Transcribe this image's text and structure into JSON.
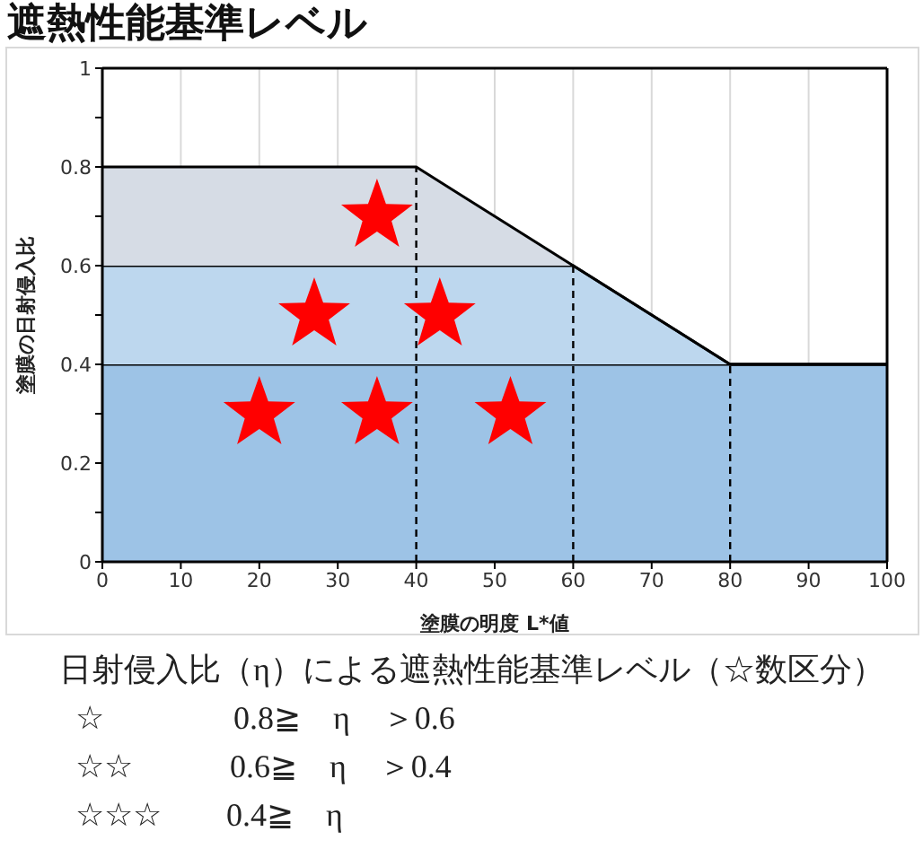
{
  "chart_data": {
    "type": "area",
    "title": "遮熱性能基準レベル",
    "xlabel": "塗膜の明度 L*値",
    "ylabel": "塗膜の日射侵入比",
    "x": [
      0,
      40,
      60,
      80,
      100
    ],
    "stacked": true,
    "series": [
      {
        "color": "#9dc3e6",
        "values": [
          0.4,
          0.4,
          0.4,
          0.4,
          0.4
        ]
      },
      {
        "color": "#bdd7ee",
        "values": [
          0.2,
          0.2,
          0.2,
          0,
          0
        ]
      },
      {
        "color": "#d6dce5",
        "values": [
          0.2,
          0.2,
          0,
          0,
          0
        ]
      },
      {
        "type": "scatter",
        "color": "#ff0000",
        "marker": "star",
        "x": [
          35,
          27,
          43,
          20,
          35,
          52
        ],
        "values": [
          0.7,
          0.5,
          0.5,
          0.3,
          0.3,
          0.3
        ]
      }
    ],
    "xlim": [
      0,
      100
    ],
    "xticks": [
      0,
      10,
      20,
      30,
      40,
      50,
      60,
      70,
      80,
      90,
      100
    ],
    "ylim": [
      0,
      1
    ],
    "yticks": [
      0,
      {
        "value": 0.1,
        "label": null
      },
      0.2,
      {
        "value": 0.3,
        "label": null
      },
      0.4,
      {
        "value": 0.5,
        "label": null
      },
      0.6,
      {
        "value": 0.7,
        "label": null
      },
      0.8,
      {
        "value": 0.9,
        "label": null
      },
      1
    ],
    "grid": "x",
    "ref_lines": [
      {
        "axis": "x",
        "value": 40,
        "color": "#000000",
        "line_style": "dashed"
      },
      {
        "axis": "x",
        "value": 60,
        "color": "#000000",
        "line_style": "dashed"
      },
      {
        "axis": "x",
        "value": 80,
        "color": "#000000",
        "line_style": "dashed"
      }
    ],
    "annotations": [
      "日射侵入比（η）による遮熱性能基準レベル（☆数区分）",
      "☆　　　　0.8≧　η　＞0.6",
      "☆☆　　　0.6≧　η　＞0.4",
      "☆☆☆　　0.4≧　η"
    ]
  }
}
